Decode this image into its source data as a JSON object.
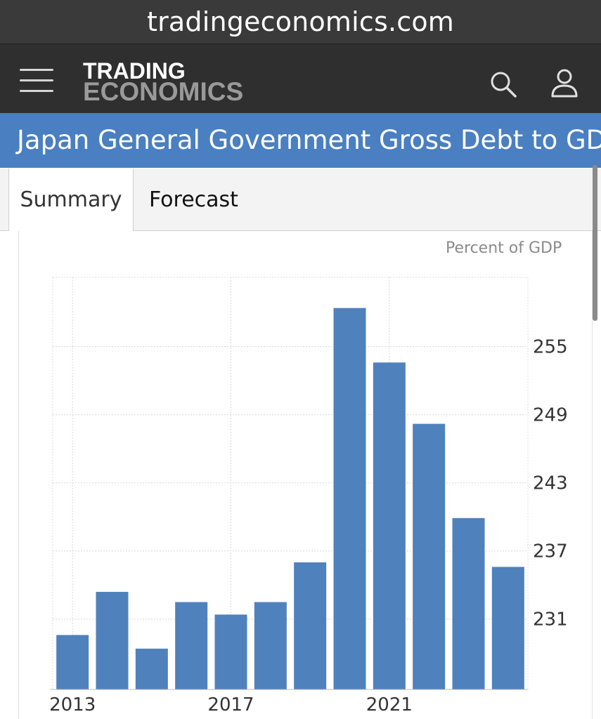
{
  "browser": {
    "url": "tradingeconomics.com"
  },
  "header": {
    "menu_icon": "hamburger-menu-icon",
    "logo_line1": "TRADING",
    "logo_line2": "ECONOMICS",
    "search_icon": "search-icon",
    "user_icon": "user-icon"
  },
  "page": {
    "title": "Japan General Government Gross Debt to GDP"
  },
  "tabs": [
    {
      "label": "Summary",
      "active": true
    },
    {
      "label": "Forecast",
      "active": false
    }
  ],
  "colors": {
    "accent": "#4a7fc1",
    "bar": "#4f81bd",
    "nav_bg": "#2f2f2f"
  },
  "chart_data": {
    "type": "bar",
    "unit_label": "Percent of GDP",
    "categories": [
      "2013",
      "2014",
      "2015",
      "2016",
      "2017",
      "2018",
      "2019",
      "2020",
      "2021",
      "2022",
      "2023",
      "2024"
    ],
    "x_tick_labels": [
      "2013",
      "2017",
      "2021"
    ],
    "values": [
      229.6,
      233.4,
      228.4,
      232.5,
      231.4,
      232.5,
      236.0,
      258.4,
      253.6,
      248.2,
      239.9,
      235.6
    ],
    "y_ticks": [
      231,
      237,
      243,
      249,
      255
    ],
    "ylim": [
      224.8,
      261.1
    ],
    "y_axis_position": "right",
    "grid": true,
    "title": "",
    "xlabel": "",
    "ylabel": ""
  }
}
